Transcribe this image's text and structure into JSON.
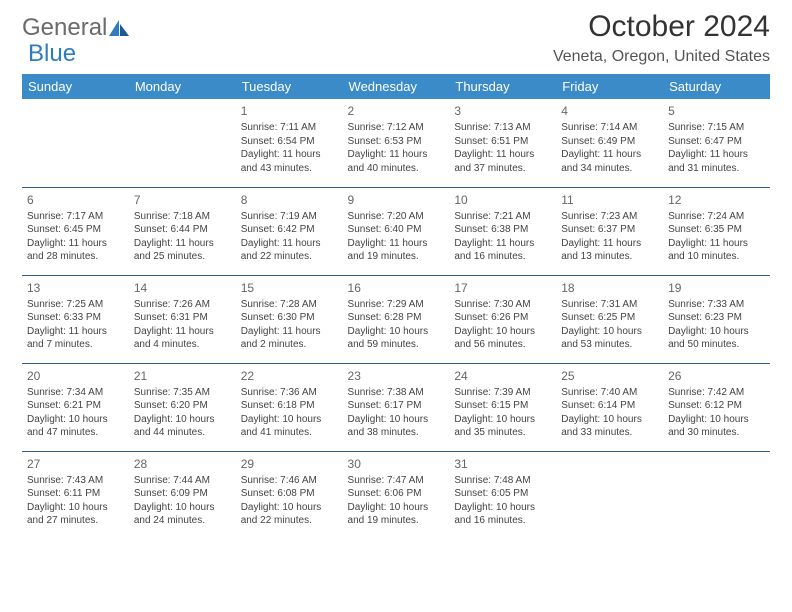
{
  "brand": {
    "part1": "General",
    "part2": "Blue"
  },
  "title": "October 2024",
  "location": "Veneta, Oregon, United States",
  "colors": {
    "header_bg": "#3b8bc9",
    "header_text": "#ffffff",
    "cell_border": "#2a5d8a",
    "body_text": "#444444",
    "daynum": "#666666",
    "title": "#333333",
    "location_text": "#555555"
  },
  "typography": {
    "month_title_fontsize": 30,
    "location_fontsize": 16,
    "weekday_fontsize": 13,
    "daynum_fontsize": 12,
    "cell_fontsize": 10
  },
  "weekdays": [
    "Sunday",
    "Monday",
    "Tuesday",
    "Wednesday",
    "Thursday",
    "Friday",
    "Saturday"
  ],
  "weeks": [
    [
      null,
      null,
      {
        "n": "1",
        "sr": "Sunrise: 7:11 AM",
        "ss": "Sunset: 6:54 PM",
        "d1": "Daylight: 11 hours",
        "d2": "and 43 minutes."
      },
      {
        "n": "2",
        "sr": "Sunrise: 7:12 AM",
        "ss": "Sunset: 6:53 PM",
        "d1": "Daylight: 11 hours",
        "d2": "and 40 minutes."
      },
      {
        "n": "3",
        "sr": "Sunrise: 7:13 AM",
        "ss": "Sunset: 6:51 PM",
        "d1": "Daylight: 11 hours",
        "d2": "and 37 minutes."
      },
      {
        "n": "4",
        "sr": "Sunrise: 7:14 AM",
        "ss": "Sunset: 6:49 PM",
        "d1": "Daylight: 11 hours",
        "d2": "and 34 minutes."
      },
      {
        "n": "5",
        "sr": "Sunrise: 7:15 AM",
        "ss": "Sunset: 6:47 PM",
        "d1": "Daylight: 11 hours",
        "d2": "and 31 minutes."
      }
    ],
    [
      {
        "n": "6",
        "sr": "Sunrise: 7:17 AM",
        "ss": "Sunset: 6:45 PM",
        "d1": "Daylight: 11 hours",
        "d2": "and 28 minutes."
      },
      {
        "n": "7",
        "sr": "Sunrise: 7:18 AM",
        "ss": "Sunset: 6:44 PM",
        "d1": "Daylight: 11 hours",
        "d2": "and 25 minutes."
      },
      {
        "n": "8",
        "sr": "Sunrise: 7:19 AM",
        "ss": "Sunset: 6:42 PM",
        "d1": "Daylight: 11 hours",
        "d2": "and 22 minutes."
      },
      {
        "n": "9",
        "sr": "Sunrise: 7:20 AM",
        "ss": "Sunset: 6:40 PM",
        "d1": "Daylight: 11 hours",
        "d2": "and 19 minutes."
      },
      {
        "n": "10",
        "sr": "Sunrise: 7:21 AM",
        "ss": "Sunset: 6:38 PM",
        "d1": "Daylight: 11 hours",
        "d2": "and 16 minutes."
      },
      {
        "n": "11",
        "sr": "Sunrise: 7:23 AM",
        "ss": "Sunset: 6:37 PM",
        "d1": "Daylight: 11 hours",
        "d2": "and 13 minutes."
      },
      {
        "n": "12",
        "sr": "Sunrise: 7:24 AM",
        "ss": "Sunset: 6:35 PM",
        "d1": "Daylight: 11 hours",
        "d2": "and 10 minutes."
      }
    ],
    [
      {
        "n": "13",
        "sr": "Sunrise: 7:25 AM",
        "ss": "Sunset: 6:33 PM",
        "d1": "Daylight: 11 hours",
        "d2": "and 7 minutes."
      },
      {
        "n": "14",
        "sr": "Sunrise: 7:26 AM",
        "ss": "Sunset: 6:31 PM",
        "d1": "Daylight: 11 hours",
        "d2": "and 4 minutes."
      },
      {
        "n": "15",
        "sr": "Sunrise: 7:28 AM",
        "ss": "Sunset: 6:30 PM",
        "d1": "Daylight: 11 hours",
        "d2": "and 2 minutes."
      },
      {
        "n": "16",
        "sr": "Sunrise: 7:29 AM",
        "ss": "Sunset: 6:28 PM",
        "d1": "Daylight: 10 hours",
        "d2": "and 59 minutes."
      },
      {
        "n": "17",
        "sr": "Sunrise: 7:30 AM",
        "ss": "Sunset: 6:26 PM",
        "d1": "Daylight: 10 hours",
        "d2": "and 56 minutes."
      },
      {
        "n": "18",
        "sr": "Sunrise: 7:31 AM",
        "ss": "Sunset: 6:25 PM",
        "d1": "Daylight: 10 hours",
        "d2": "and 53 minutes."
      },
      {
        "n": "19",
        "sr": "Sunrise: 7:33 AM",
        "ss": "Sunset: 6:23 PM",
        "d1": "Daylight: 10 hours",
        "d2": "and 50 minutes."
      }
    ],
    [
      {
        "n": "20",
        "sr": "Sunrise: 7:34 AM",
        "ss": "Sunset: 6:21 PM",
        "d1": "Daylight: 10 hours",
        "d2": "and 47 minutes."
      },
      {
        "n": "21",
        "sr": "Sunrise: 7:35 AM",
        "ss": "Sunset: 6:20 PM",
        "d1": "Daylight: 10 hours",
        "d2": "and 44 minutes."
      },
      {
        "n": "22",
        "sr": "Sunrise: 7:36 AM",
        "ss": "Sunset: 6:18 PM",
        "d1": "Daylight: 10 hours",
        "d2": "and 41 minutes."
      },
      {
        "n": "23",
        "sr": "Sunrise: 7:38 AM",
        "ss": "Sunset: 6:17 PM",
        "d1": "Daylight: 10 hours",
        "d2": "and 38 minutes."
      },
      {
        "n": "24",
        "sr": "Sunrise: 7:39 AM",
        "ss": "Sunset: 6:15 PM",
        "d1": "Daylight: 10 hours",
        "d2": "and 35 minutes."
      },
      {
        "n": "25",
        "sr": "Sunrise: 7:40 AM",
        "ss": "Sunset: 6:14 PM",
        "d1": "Daylight: 10 hours",
        "d2": "and 33 minutes."
      },
      {
        "n": "26",
        "sr": "Sunrise: 7:42 AM",
        "ss": "Sunset: 6:12 PM",
        "d1": "Daylight: 10 hours",
        "d2": "and 30 minutes."
      }
    ],
    [
      {
        "n": "27",
        "sr": "Sunrise: 7:43 AM",
        "ss": "Sunset: 6:11 PM",
        "d1": "Daylight: 10 hours",
        "d2": "and 27 minutes."
      },
      {
        "n": "28",
        "sr": "Sunrise: 7:44 AM",
        "ss": "Sunset: 6:09 PM",
        "d1": "Daylight: 10 hours",
        "d2": "and 24 minutes."
      },
      {
        "n": "29",
        "sr": "Sunrise: 7:46 AM",
        "ss": "Sunset: 6:08 PM",
        "d1": "Daylight: 10 hours",
        "d2": "and 22 minutes."
      },
      {
        "n": "30",
        "sr": "Sunrise: 7:47 AM",
        "ss": "Sunset: 6:06 PM",
        "d1": "Daylight: 10 hours",
        "d2": "and 19 minutes."
      },
      {
        "n": "31",
        "sr": "Sunrise: 7:48 AM",
        "ss": "Sunset: 6:05 PM",
        "d1": "Daylight: 10 hours",
        "d2": "and 16 minutes."
      },
      null,
      null
    ]
  ]
}
